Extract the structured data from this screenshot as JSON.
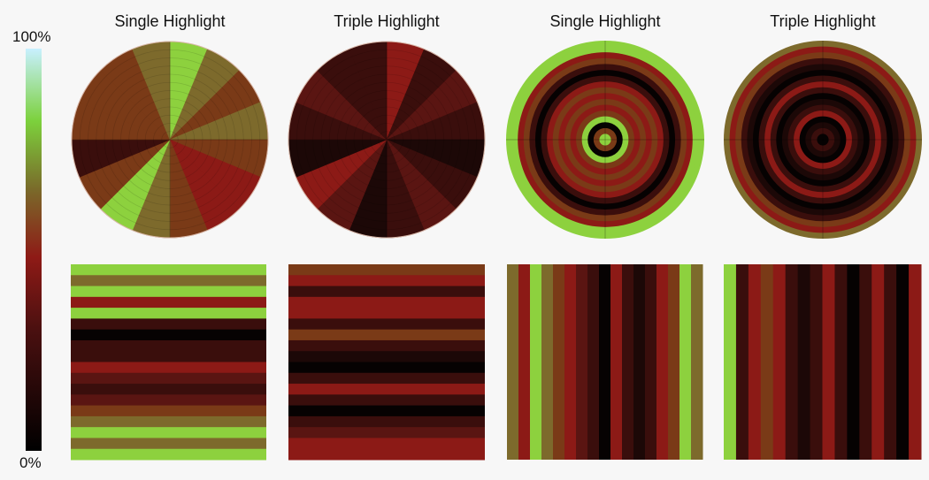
{
  "titles": [
    "Single Highlight",
    "Triple Highlight",
    "Single Highlight",
    "Triple Highlight"
  ],
  "colorbar": {
    "max_label": "100%",
    "min_label": "0%",
    "stops": [
      {
        "at": 0.0,
        "color": "#000000"
      },
      {
        "at": 0.3,
        "color": "#4a1010"
      },
      {
        "at": 0.48,
        "color": "#8e1a16"
      },
      {
        "at": 0.65,
        "color": "#7a6a2a"
      },
      {
        "at": 0.82,
        "color": "#7cd13c"
      },
      {
        "at": 1.0,
        "color": "#c8f0ff"
      }
    ]
  },
  "palette": {
    "green": "#8dd13e",
    "olive": "#7d6a2c",
    "brown": "#7a3a17",
    "red": "#8c1a16",
    "darkred": "#5a1512",
    "maroon": "#3a0e0c",
    "verydark": "#1c0807",
    "black": "#060202"
  },
  "panels": {
    "pie_single": [
      "green",
      "olive",
      "brown",
      "olive",
      "brown",
      "red",
      "red",
      "brown",
      "olive",
      "green",
      "brown",
      "maroon",
      "brown",
      "brown",
      "brown",
      "olive"
    ],
    "pie_triple": [
      "red",
      "maroon",
      "darkred",
      "maroon",
      "verydark",
      "maroon",
      "darkred",
      "maroon",
      "verydark",
      "darkred",
      "red",
      "verydark",
      "maroon",
      "darkred",
      "maroon",
      "maroon"
    ],
    "rings_single": [
      "green",
      "brown",
      "black",
      "green",
      "brown",
      "red",
      "brown",
      "red",
      "brown",
      "red",
      "maroon",
      "black",
      "maroon",
      "brown",
      "red",
      "green",
      "green"
    ],
    "rings_triple": [
      "black",
      "maroon",
      "verydark",
      "black",
      "red",
      "maroon",
      "verydark",
      "black",
      "maroon",
      "red",
      "maroon",
      "black",
      "verydark",
      "maroon",
      "brown",
      "red",
      "olive"
    ],
    "bars_h": [
      "green",
      "olive",
      "green",
      "red",
      "green",
      "maroon",
      "black",
      "maroon",
      "maroon",
      "red",
      "darkred",
      "maroon",
      "darkred",
      "brown",
      "olive",
      "green",
      "olive",
      "green"
    ],
    "bars_h_triple": [
      "brown",
      "red",
      "maroon",
      "red",
      "red",
      "maroon",
      "brown",
      "maroon",
      "verydark",
      "black",
      "maroon",
      "red",
      "maroon",
      "black",
      "maroon",
      "darkred",
      "red",
      "red"
    ],
    "bars_v": [
      "olive",
      "red",
      "green",
      "olive",
      "brown",
      "red",
      "darkred",
      "maroon",
      "black",
      "red",
      "maroon",
      "verydark",
      "maroon",
      "red",
      "brown",
      "green",
      "olive"
    ],
    "bars_v_triple": [
      "green",
      "maroon",
      "red",
      "brown",
      "red",
      "maroon",
      "verydark",
      "maroon",
      "red",
      "maroon",
      "black",
      "maroon",
      "red",
      "maroon",
      "black",
      "red"
    ]
  }
}
